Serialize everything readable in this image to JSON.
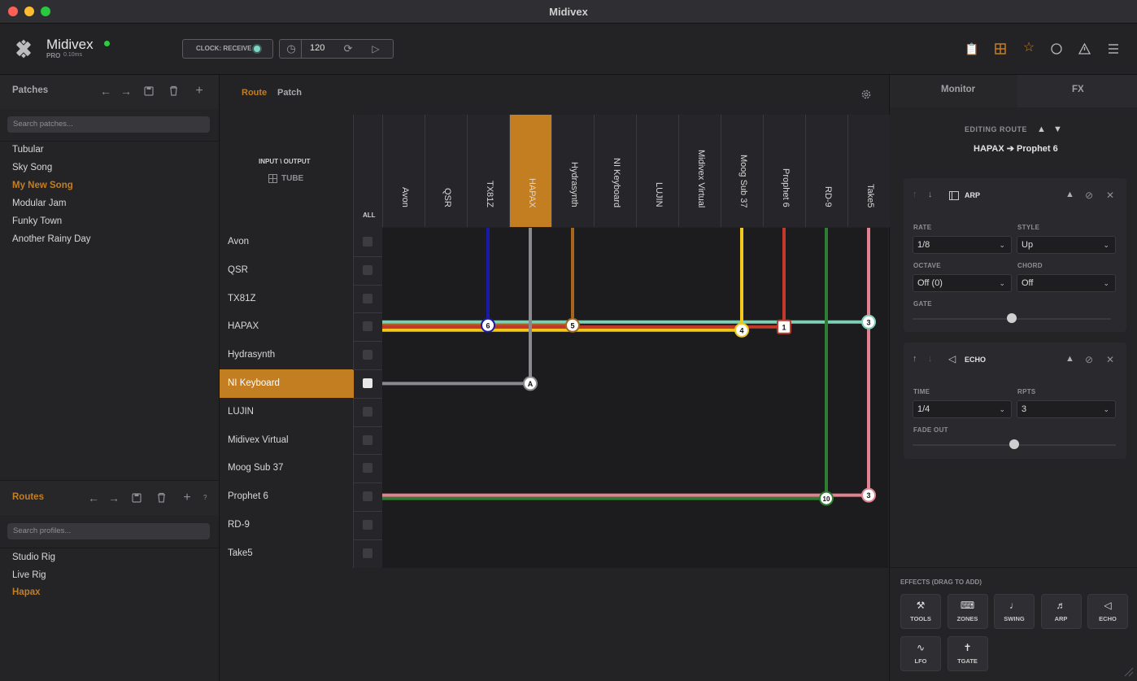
{
  "window": {
    "title": "Midivex"
  },
  "header": {
    "app_name": "Midivex",
    "edition": "PRO",
    "latency": "0.10ms",
    "clock_label": "CLOCK: RECEIVE",
    "tempo": "120"
  },
  "colors": {
    "accent": "#c47e22",
    "bg": "#1e1e21",
    "green": "#2ecc40"
  },
  "patches": {
    "title": "Patches",
    "search_placeholder": "Search patches...",
    "items": [
      "Tubular",
      "Sky Song",
      "My New Song",
      "Modular Jam",
      "Funky Town",
      "Another Rainy Day"
    ],
    "selected": "My New Song"
  },
  "routes_panel": {
    "title": "Routes",
    "help": "?",
    "search_placeholder": "Search profiles...",
    "items": [
      "Studio Rig",
      "Live Rig",
      "Hapax"
    ],
    "selected": "Hapax"
  },
  "center": {
    "tabs": [
      "Route",
      "Patch"
    ],
    "active_tab": "Route",
    "io_label": "INPUT \\ OUTPUT",
    "tube_label": "TUBE",
    "all_label": "ALL"
  },
  "matrix": {
    "outputs": [
      "Avon",
      "QSR",
      "TX81Z",
      "HAPAX",
      "Hydrasynth",
      "NI Keyboard",
      "LUJIN",
      "Midivex Virtual",
      "Moog Sub 37",
      "Prophet 6",
      "RD-9",
      "Take5"
    ],
    "inputs": [
      "Avon",
      "QSR",
      "TX81Z",
      "HAPAX",
      "Hydrasynth",
      "NI Keyboard",
      "LUJIN",
      "Midivex Virtual",
      "Moog Sub 37",
      "Prophet 6",
      "RD-9",
      "Take5"
    ],
    "selected_output": "HAPAX",
    "selected_input": "NI Keyboard",
    "nodes": [
      {
        "label": "6",
        "input": "HAPAX",
        "output": "TX81Z",
        "color": "#1a1aa8"
      },
      {
        "label": "5",
        "input": "HAPAX",
        "output": "Hydrasynth",
        "color": "#a5651c"
      },
      {
        "label": "4",
        "input": "HAPAX",
        "output": "Moog Sub 37",
        "color": "#f2c81e"
      },
      {
        "label": "1",
        "input": "HAPAX",
        "output": "Prophet 6",
        "color": "#c0392b"
      },
      {
        "label": "3",
        "input": "HAPAX",
        "output": "Take5",
        "color": "#7ecfb5"
      },
      {
        "label": "A",
        "input": "NI Keyboard",
        "output": "HAPAX",
        "color": "#8a8a8e"
      },
      {
        "label": "10",
        "input": "Prophet 6",
        "output": "RD-9",
        "color": "#2e7d32"
      },
      {
        "label": "3",
        "input": "Prophet 6",
        "output": "Take5",
        "color": "#e0828f"
      }
    ]
  },
  "right": {
    "tabs": [
      "Monitor",
      "FX"
    ],
    "active_tab": "FX",
    "editing_label": "EDITING ROUTE",
    "route_name": "HAPAX ➔ Prophet 6",
    "arp": {
      "title": "ARP",
      "rate_label": "RATE",
      "rate": "1/8",
      "style_label": "STYLE",
      "style": "Up",
      "octave_label": "OCTAVE",
      "octave": "Off (0)",
      "chord_label": "CHORD",
      "chord": "Off",
      "gate_label": "GATE",
      "gate": 0.5
    },
    "echo": {
      "title": "ECHO",
      "time_label": "TIME",
      "time": "1/4",
      "rpts_label": "RPTS",
      "rpts": "3",
      "fade_label": "FADE OUT",
      "fade": 0.5
    },
    "effects_label": "EFFECTS (DRAG TO ADD)",
    "effects": [
      {
        "name": "TOOLS",
        "icon": "wrench-icon",
        "glyph": "⚒"
      },
      {
        "name": "ZONES",
        "icon": "keyboard-icon",
        "glyph": "⌨"
      },
      {
        "name": "SWING",
        "icon": "metronome-icon",
        "glyph": "♩"
      },
      {
        "name": "ARP",
        "icon": "notes-icon",
        "glyph": "♬"
      },
      {
        "name": "ECHO",
        "icon": "speaker-icon",
        "glyph": "◁"
      },
      {
        "name": "LFO",
        "icon": "wave-icon",
        "glyph": "∿"
      },
      {
        "name": "TGATE",
        "icon": "gate-icon",
        "glyph": "✝"
      }
    ]
  }
}
